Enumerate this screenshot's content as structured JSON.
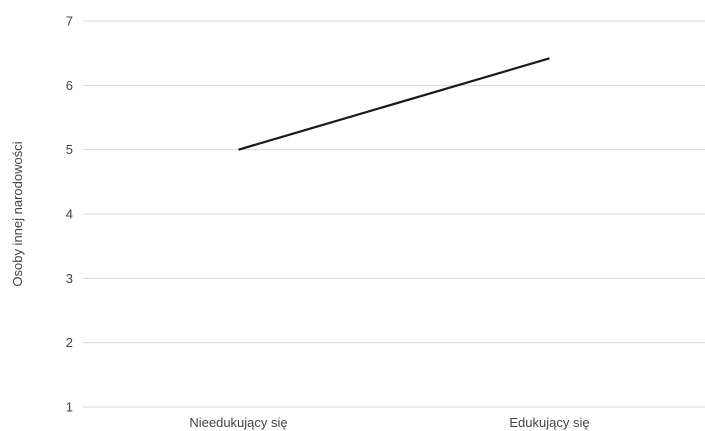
{
  "chart_data": {
    "type": "line",
    "categories": [
      "Nieedukujący się",
      "Edukujący się"
    ],
    "series": [
      {
        "values": [
          5.0,
          6.42
        ]
      }
    ],
    "title": "",
    "xlabel": "",
    "ylabel": "Osoby innej narodowości",
    "ylim": [
      1,
      7
    ],
    "yticks": [
      1,
      2,
      3,
      4,
      5,
      6,
      7
    ],
    "grid": true,
    "line_color": "#1a1a1a",
    "grid_color": "#d9d9d9",
    "text_color": "#444444"
  }
}
